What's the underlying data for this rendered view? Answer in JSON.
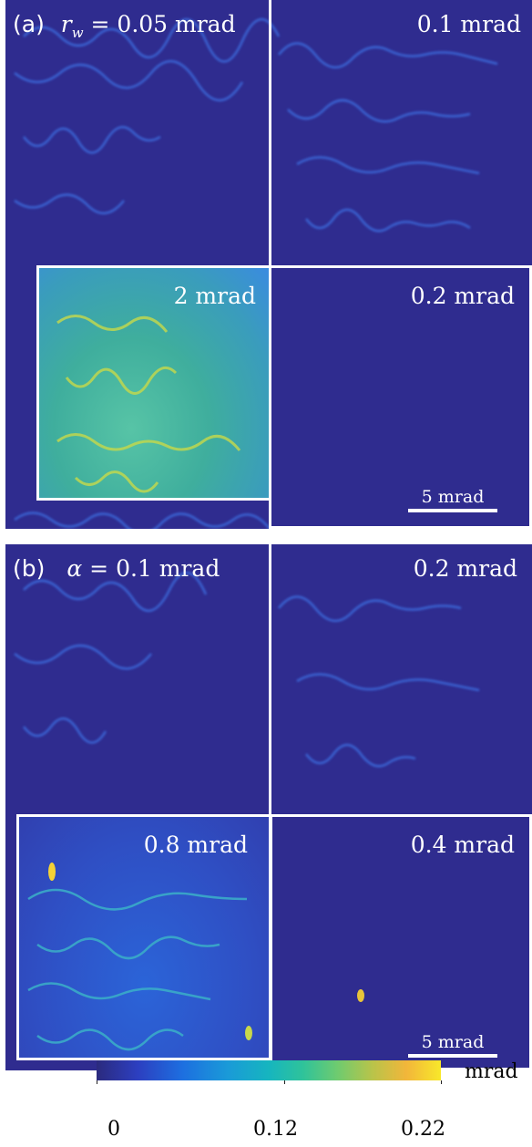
{
  "panel_a": {
    "letter": "(a)",
    "title_var": "r",
    "title_sub": "w",
    "title_value": " = 0.05 mrad",
    "top_right": "0.1 mrad",
    "bottom_left": "2 mrad",
    "bottom_right": "0.2 mrad",
    "scale": "5 mrad"
  },
  "panel_b": {
    "letter": "(b)",
    "title_var": "α",
    "title_value": " = 0.1 mrad",
    "top_right": "0.2 mrad",
    "bottom_left": "0.8 mrad",
    "bottom_right": "0.4 mrad",
    "scale": "5 mrad"
  },
  "colorbar": {
    "unit": "mrad",
    "ticks": [
      "0",
      "0.12",
      "0.22"
    ]
  }
}
